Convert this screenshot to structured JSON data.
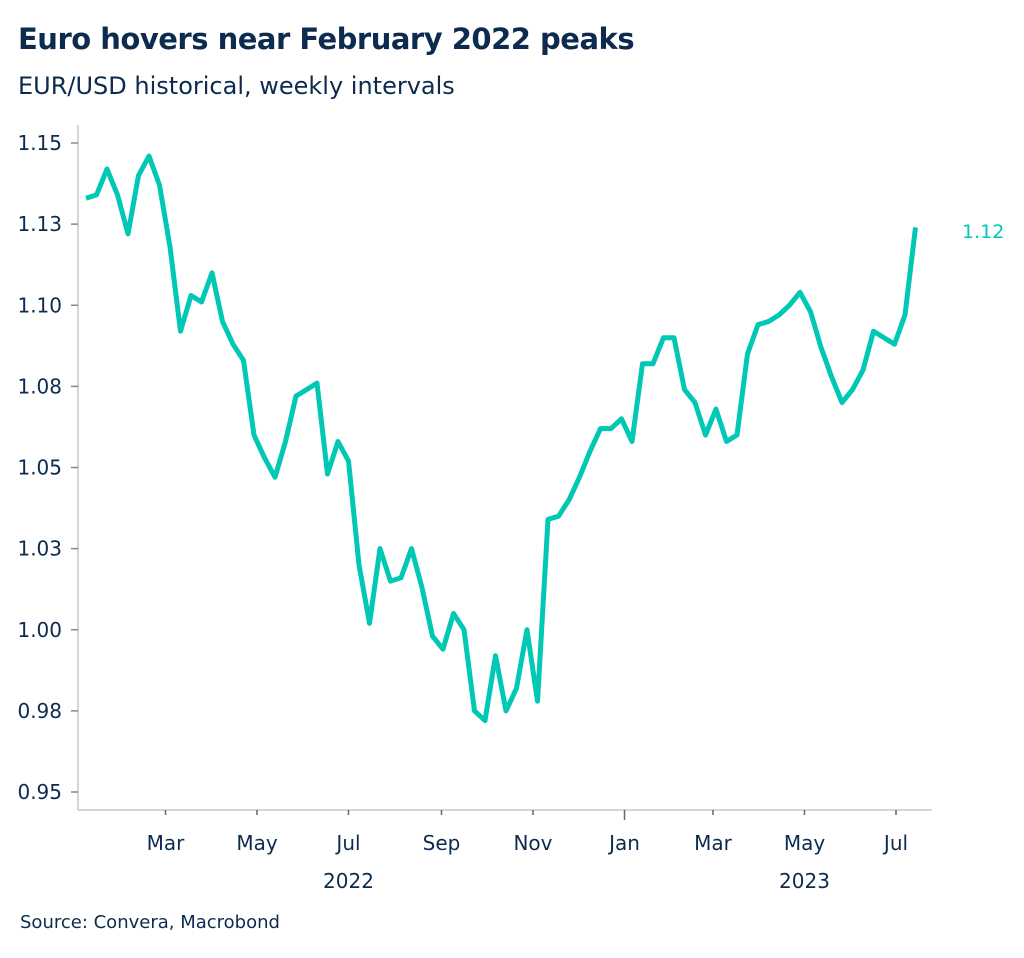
{
  "title": "Euro hovers near February 2022 peaks",
  "subtitle": "EUR/USD historical, weekly intervals",
  "source": "Source: Convera, Macrobond",
  "colors": {
    "line": "#00c8b4",
    "text": "#0d2b4f",
    "axis": "#c8c8c8"
  },
  "chart_data": {
    "type": "line",
    "title": "Euro hovers near February 2022 peaks",
    "subtitle": "EUR/USD historical, weekly intervals",
    "start_date": "2022-01-07",
    "interval": "weekly",
    "ylim": [
      0.95,
      1.15
    ],
    "yticks": [
      0.95,
      0.975,
      1.0,
      1.025,
      1.05,
      1.075,
      1.1,
      1.125,
      1.15
    ],
    "ytick_labels": [
      "0.95",
      "0.98",
      "1.00",
      "1.03",
      "1.05",
      "1.08",
      "1.10",
      "1.13",
      "1.15"
    ],
    "xlim": [
      "2022-01-01",
      "2023-08-15"
    ],
    "xtick_labels": [
      {
        "date": "2022-03-01",
        "label": "Mar"
      },
      {
        "date": "2022-05-01",
        "label": "May"
      },
      {
        "date": "2022-07-01",
        "label": "Jul"
      },
      {
        "date": "2022-09-01",
        "label": "Sep"
      },
      {
        "date": "2022-11-01",
        "label": "Nov"
      },
      {
        "date": "2023-01-01",
        "label": "Jan"
      },
      {
        "date": "2023-03-01",
        "label": "Mar"
      },
      {
        "date": "2023-05-01",
        "label": "May"
      },
      {
        "date": "2023-07-01",
        "label": "Jul"
      }
    ],
    "year_labels": [
      {
        "date": "2022-07-01",
        "label": "2022"
      },
      {
        "date": "2023-05-01",
        "label": "2023"
      }
    ],
    "last_value_label": "1.12",
    "grid": false,
    "values": [
      1.133,
      1.134,
      1.142,
      1.134,
      1.122,
      1.14,
      1.146,
      1.137,
      1.118,
      1.092,
      1.103,
      1.101,
      1.11,
      1.095,
      1.088,
      1.083,
      1.06,
      1.053,
      1.047,
      1.058,
      1.072,
      1.074,
      1.076,
      1.048,
      1.058,
      1.052,
      1.02,
      1.002,
      1.025,
      1.015,
      1.016,
      1.025,
      1.013,
      0.998,
      0.994,
      1.005,
      1.0,
      0.975,
      0.972,
      0.992,
      0.975,
      0.982,
      1.0,
      0.978,
      1.034,
      1.035,
      1.04,
      1.047,
      1.055,
      1.062,
      1.062,
      1.065,
      1.058,
      1.082,
      1.082,
      1.09,
      1.09,
      1.074,
      1.07,
      1.06,
      1.068,
      1.058,
      1.06,
      1.085,
      1.094,
      1.095,
      1.097,
      1.1,
      1.104,
      1.098,
      1.087,
      1.078,
      1.07,
      1.074,
      1.08,
      1.092,
      1.09,
      1.088,
      1.097,
      1.124
    ]
  }
}
